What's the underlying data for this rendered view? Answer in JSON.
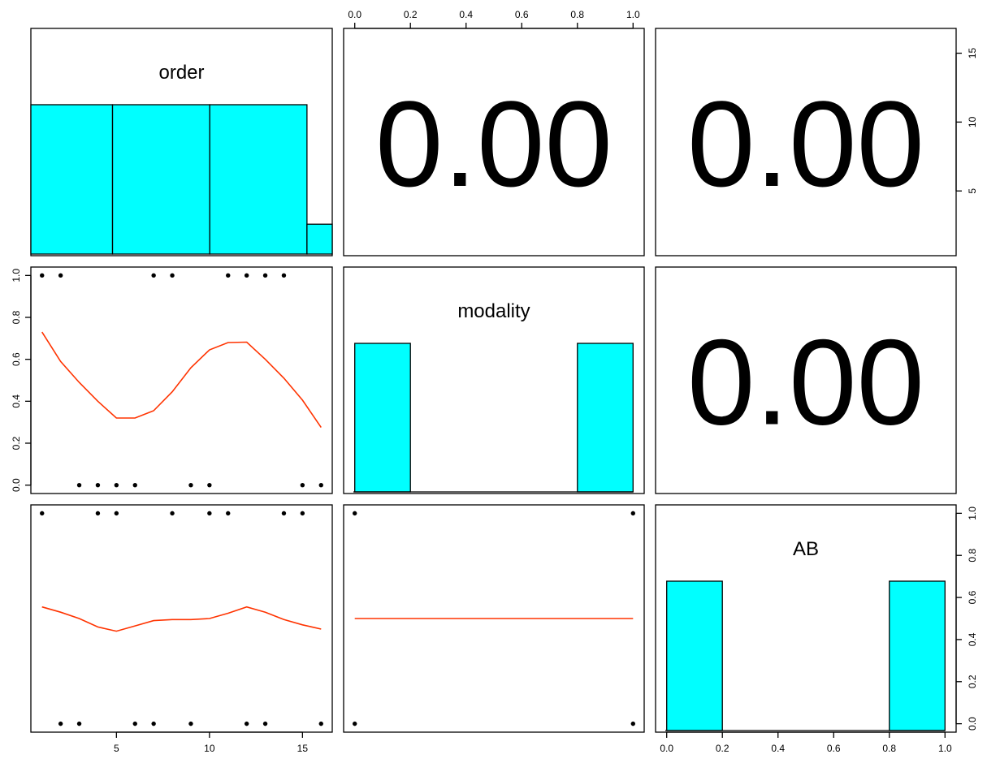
{
  "chart_data": {
    "type": "scatter",
    "variables": [
      "order",
      "modality",
      "AB"
    ],
    "colors": {
      "histogram_fill": "#00ffff",
      "smoother_line": "#ff3300",
      "points": "#000000",
      "frame": "#000000"
    },
    "x_ticks": {
      "order": [
        "5",
        "10",
        "15"
      ],
      "modality": [
        "0.0",
        "0.2",
        "0.4",
        "0.6",
        "0.8",
        "1.0"
      ],
      "AB": [
        "0.0",
        "0.2",
        "0.4",
        "0.6",
        "0.8",
        "1.0"
      ]
    },
    "y_ticks": {
      "order": [
        "5",
        "10",
        "15"
      ],
      "modality": [
        "0.0",
        "0.2",
        "0.4",
        "0.6",
        "0.8",
        "1.0"
      ],
      "AB": [
        "0.0",
        "0.2",
        "0.4",
        "0.6",
        "0.8",
        "1.0"
      ]
    },
    "correlations": [
      {
        "pair": [
          "order",
          "modality"
        ],
        "text": "0.00"
      },
      {
        "pair": [
          "order",
          "AB"
        ],
        "text": "0.00"
      },
      {
        "pair": [
          "modality",
          "AB"
        ],
        "text": "0.00"
      }
    ],
    "histograms": {
      "order": {
        "xlim": [
          0.8,
          16.3
        ],
        "bins": [
          [
            0,
            5
          ],
          [
            5,
            10
          ],
          [
            10,
            15
          ],
          [
            15,
            20
          ]
        ],
        "heights": [
          1.0,
          1.0,
          1.0,
          0.2
        ]
      },
      "modality": {
        "xlim": [
          -0.04,
          1.04
        ],
        "bins": [
          [
            0,
            0.2
          ],
          [
            0.8,
            1.0
          ]
        ],
        "heights": [
          1.0,
          1.0
        ]
      },
      "AB": {
        "xlim": [
          -0.04,
          1.04
        ],
        "bins": [
          [
            0,
            0.2
          ],
          [
            0.8,
            1.0
          ]
        ],
        "heights": [
          1.0,
          1.0
        ]
      }
    },
    "scatter_panels": [
      {
        "x": "order",
        "y": "modality",
        "xlim": [
          0.4,
          16.6
        ],
        "ylim": [
          -0.04,
          1.04
        ],
        "points": [
          [
            1,
            1
          ],
          [
            2,
            1
          ],
          [
            7,
            1
          ],
          [
            8,
            1
          ],
          [
            11,
            1
          ],
          [
            12,
            1
          ],
          [
            13,
            1
          ],
          [
            14,
            1
          ],
          [
            3,
            0
          ],
          [
            4,
            0
          ],
          [
            5,
            0
          ],
          [
            6,
            0
          ],
          [
            9,
            0
          ],
          [
            10,
            0
          ],
          [
            15,
            0
          ],
          [
            16,
            0
          ]
        ],
        "smooth": [
          [
            1,
            0.73
          ],
          [
            2,
            0.59
          ],
          [
            3,
            0.49
          ],
          [
            4,
            0.4
          ],
          [
            5,
            0.32
          ],
          [
            6,
            0.32
          ],
          [
            7,
            0.355
          ],
          [
            8,
            0.445
          ],
          [
            9,
            0.56
          ],
          [
            10,
            0.645
          ],
          [
            11,
            0.68
          ],
          [
            12,
            0.682
          ],
          [
            13,
            0.6
          ],
          [
            14,
            0.51
          ],
          [
            15,
            0.405
          ],
          [
            16,
            0.275
          ]
        ]
      },
      {
        "x": "order",
        "y": "AB",
        "xlim": [
          0.4,
          16.6
        ],
        "ylim": [
          -0.04,
          1.04
        ],
        "points": [
          [
            1,
            1
          ],
          [
            4,
            1
          ],
          [
            5,
            1
          ],
          [
            8,
            1
          ],
          [
            10,
            1
          ],
          [
            11,
            1
          ],
          [
            14,
            1
          ],
          [
            15,
            1
          ],
          [
            2,
            0
          ],
          [
            3,
            0
          ],
          [
            6,
            0
          ],
          [
            7,
            0
          ],
          [
            9,
            0
          ],
          [
            12,
            0
          ],
          [
            13,
            0
          ],
          [
            16,
            0
          ]
        ],
        "smooth": [
          [
            1,
            0.555
          ],
          [
            2,
            0.53
          ],
          [
            3,
            0.5
          ],
          [
            4,
            0.46
          ],
          [
            5,
            0.44
          ],
          [
            6,
            0.465
          ],
          [
            7,
            0.49
          ],
          [
            8,
            0.495
          ],
          [
            9,
            0.495
          ],
          [
            10,
            0.5
          ],
          [
            11,
            0.525
          ],
          [
            12,
            0.555
          ],
          [
            13,
            0.53
          ],
          [
            14,
            0.495
          ],
          [
            15,
            0.47
          ],
          [
            16,
            0.45
          ]
        ]
      },
      {
        "x": "modality",
        "y": "AB",
        "xlim": [
          -0.04,
          1.04
        ],
        "ylim": [
          -0.04,
          1.04
        ],
        "points": [
          [
            0,
            1
          ],
          [
            1,
            1
          ],
          [
            0,
            0
          ],
          [
            1,
            0
          ]
        ],
        "smooth": [
          [
            0,
            0.5
          ],
          [
            1,
            0.5
          ]
        ]
      }
    ]
  }
}
